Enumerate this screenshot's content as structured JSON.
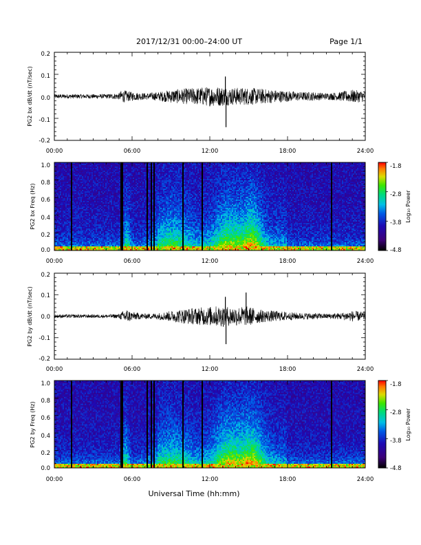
{
  "header": {
    "title": "2017/12/31   00:00–24:00 UT",
    "page": "Page 1/1"
  },
  "xaxis": {
    "label": "Universal Time (hh:mm)",
    "tick_labels": [
      "00:00",
      "06:00",
      "12:00",
      "18:00",
      "24:00"
    ]
  },
  "colorbar": {
    "label": "Log₁₀ Power",
    "tick_labels": [
      "-1.8",
      "-2.8",
      "-3.8",
      "-4.8"
    ]
  },
  "chart_data": [
    {
      "type": "line",
      "panel": "bx-wave",
      "ylabel": "PG2 bx dB/dt (nT/sec)",
      "xlim": [
        0,
        24
      ],
      "ylim": [
        -0.2,
        0.2
      ],
      "y_tick_labels": [
        "0.2",
        "0.1",
        "0.0",
        "-0.1",
        "-0.2"
      ],
      "envelope": {
        "x_hours": [
          0,
          1,
          2,
          3,
          4,
          5,
          5.2,
          6,
          7,
          8,
          9,
          10,
          11,
          12,
          13,
          13.5,
          14,
          15,
          16,
          17,
          18,
          19,
          20,
          21,
          22,
          23,
          24
        ],
        "amplitude": [
          0.01,
          0.01,
          0.01,
          0.01,
          0.01,
          0.015,
          0.03,
          0.02,
          0.015,
          0.02,
          0.03,
          0.035,
          0.04,
          0.045,
          0.045,
          0.04,
          0.04,
          0.04,
          0.035,
          0.03,
          0.025,
          0.02,
          0.02,
          0.015,
          0.02,
          0.03,
          0.025
        ]
      },
      "spikes": [
        {
          "x_hours": 13.2,
          "y": 0.09
        },
        {
          "x_hours": 13.25,
          "y": -0.14
        }
      ]
    },
    {
      "type": "heatmap",
      "panel": "bx-spectrogram",
      "ylabel": "PG2 bx Freq (Hz)",
      "xlim": [
        0,
        24
      ],
      "ylim": [
        0,
        1.0
      ],
      "y_tick_labels": [
        "1.0",
        "0.8",
        "0.6",
        "0.4",
        "0.2",
        "0.0"
      ],
      "zlim": [
        -4.8,
        -1.8
      ],
      "data_gaps_hours": [
        1.3,
        5.2,
        7.2,
        7.5,
        7.7,
        9.9,
        11.4,
        21.4
      ],
      "activity_hours": [
        {
          "center": 13.5,
          "width": 1.2,
          "strength": 0.8
        },
        {
          "center": 15.3,
          "width": 0.8,
          "strength": 0.9
        },
        {
          "center": 9.0,
          "width": 1.5,
          "strength": 0.5
        },
        {
          "center": 5.6,
          "width": 0.3,
          "strength": 0.6
        }
      ]
    },
    {
      "type": "line",
      "panel": "by-wave",
      "ylabel": "PG2 by dB/dt (nT/sec)",
      "xlim": [
        0,
        24
      ],
      "ylim": [
        -0.2,
        0.2
      ],
      "y_tick_labels": [
        "0.2",
        "0.1",
        "0.0",
        "-0.1",
        "-0.2"
      ],
      "envelope": {
        "x_hours": [
          0,
          1,
          2,
          3,
          4,
          5,
          5.5,
          6,
          7,
          8,
          9,
          10,
          11,
          12,
          13,
          13.5,
          14,
          15,
          16,
          17,
          18,
          19,
          20,
          21,
          22,
          23,
          24
        ],
        "amplitude": [
          0.008,
          0.008,
          0.008,
          0.008,
          0.008,
          0.01,
          0.035,
          0.02,
          0.012,
          0.015,
          0.025,
          0.035,
          0.04,
          0.045,
          0.05,
          0.045,
          0.045,
          0.045,
          0.03,
          0.025,
          0.02,
          0.015,
          0.015,
          0.012,
          0.015,
          0.025,
          0.02
        ]
      },
      "spikes": [
        {
          "x_hours": 13.25,
          "y": -0.13
        },
        {
          "x_hours": 14.8,
          "y": 0.11
        },
        {
          "x_hours": 13.2,
          "y": 0.09
        }
      ]
    },
    {
      "type": "heatmap",
      "panel": "by-spectrogram",
      "ylabel": "PG2 by Freq (Hz)",
      "xlim": [
        0,
        24
      ],
      "ylim": [
        0,
        1.0
      ],
      "y_tick_labels": [
        "1.0",
        "0.8",
        "0.6",
        "0.4",
        "0.2",
        "0.0"
      ],
      "zlim": [
        -4.8,
        -1.8
      ],
      "data_gaps_hours": [
        1.3,
        5.2,
        7.2,
        7.5,
        7.7,
        9.9,
        11.4,
        21.4
      ],
      "activity_hours": [
        {
          "center": 13.5,
          "width": 1.2,
          "strength": 0.85
        },
        {
          "center": 15.3,
          "width": 0.9,
          "strength": 0.9
        },
        {
          "center": 9.0,
          "width": 1.5,
          "strength": 0.45
        },
        {
          "center": 5.5,
          "width": 0.3,
          "strength": 0.6
        }
      ]
    }
  ]
}
